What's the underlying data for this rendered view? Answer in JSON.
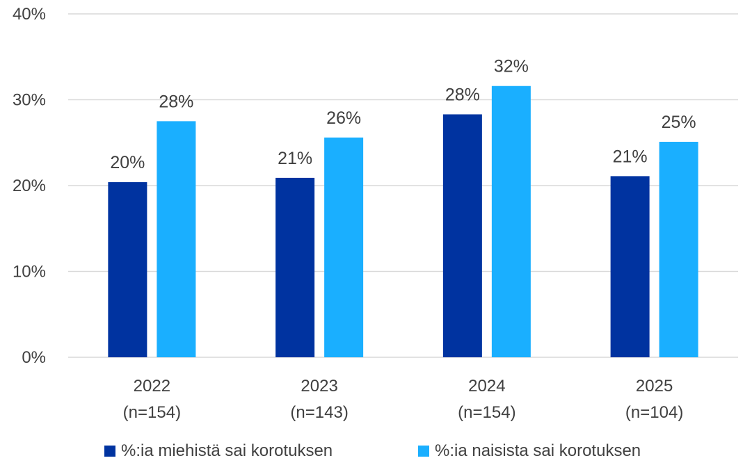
{
  "chart_data": {
    "type": "bar",
    "categories": [
      "2022",
      "2023",
      "2024",
      "2025"
    ],
    "category_sublabels": [
      "(n=154)",
      "(n=143)",
      "(n=154)",
      "(n=104)"
    ],
    "series": [
      {
        "name": "%:ia miehistä sai korotuksen",
        "values": [
          20.4,
          20.9,
          28.3,
          21.1
        ],
        "labels": [
          "20%",
          "21%",
          "28%",
          "21%"
        ],
        "color": "#0033A0"
      },
      {
        "name": "%:ia naisista sai korotuksen",
        "values": [
          27.5,
          25.6,
          31.6,
          25.1
        ],
        "labels": [
          "28%",
          "26%",
          "32%",
          "25%"
        ],
        "color": "#1AAFFF"
      }
    ],
    "yticks": [
      "0%",
      "10%",
      "20%",
      "30%",
      "40%"
    ],
    "ylim": [
      0,
      40
    ],
    "grid": true,
    "legend_position": "bottom",
    "title": "",
    "xlabel": "",
    "ylabel": ""
  }
}
